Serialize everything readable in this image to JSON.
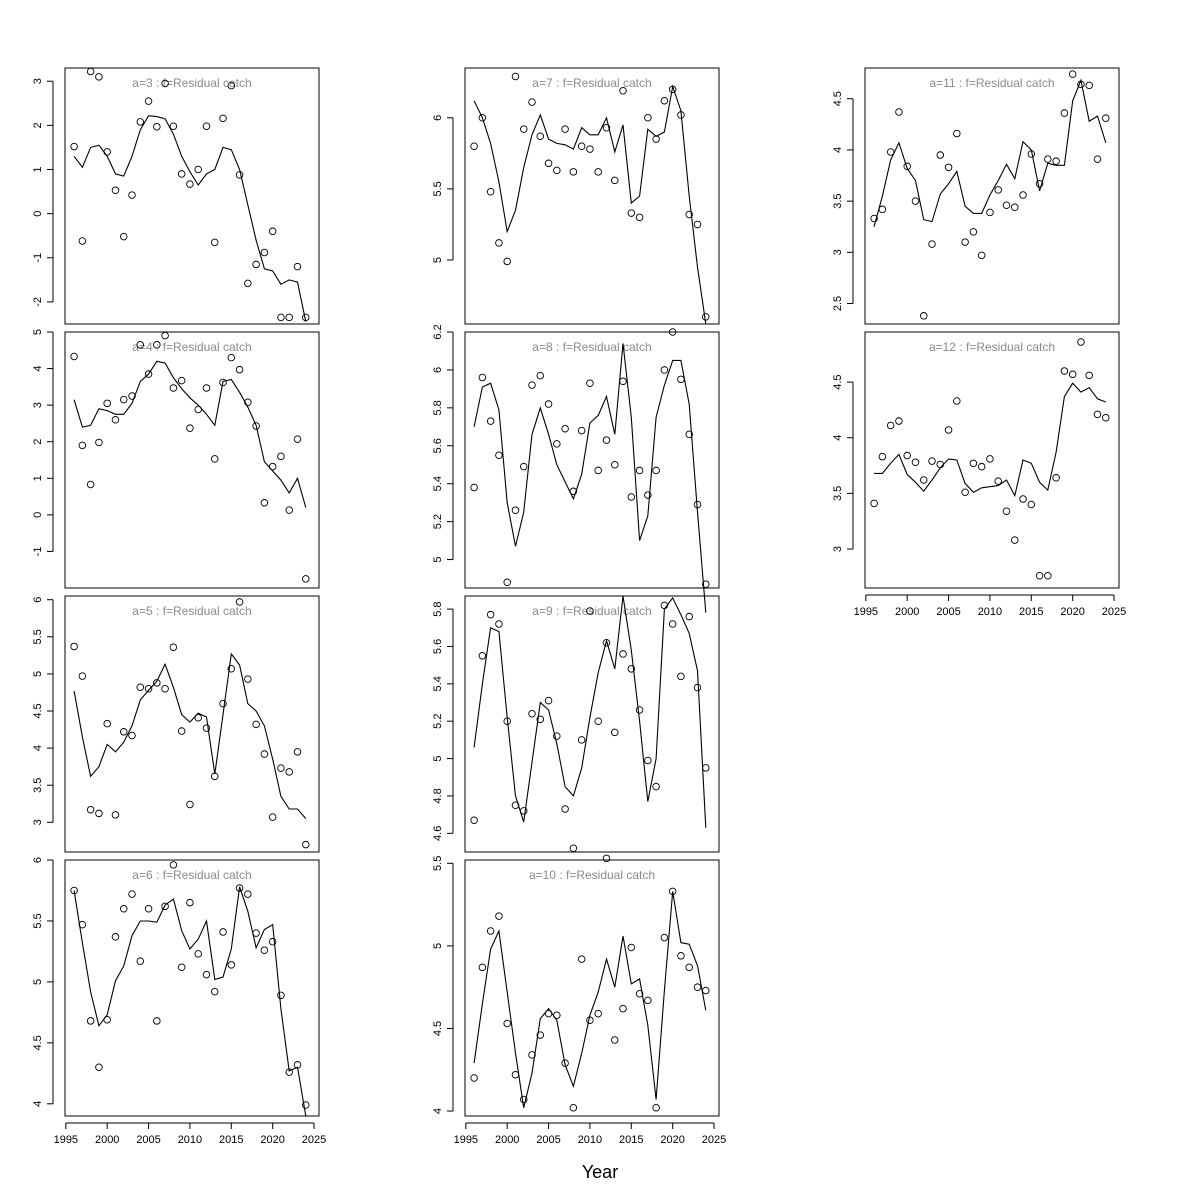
{
  "chart_data": [
    {
      "type": "line",
      "title": "a=3  :  f=Residual catch",
      "x_years": [
        1996,
        1997,
        1998,
        1999,
        2000,
        2001,
        2002,
        2003,
        2004,
        2005,
        2006,
        2007,
        2008,
        2009,
        2010,
        2011,
        2012,
        2013,
        2014,
        2015,
        2016,
        2017,
        2018,
        2019,
        2020,
        2021,
        2022,
        2023,
        2024
      ],
      "ylim": [
        -2.5,
        3.3
      ],
      "yticks": [
        -2,
        -1,
        0,
        1,
        2,
        3
      ],
      "series": [
        {
          "role": "fitted",
          "style": "line",
          "values": [
            1.3,
            1.05,
            1.5,
            1.55,
            1.3,
            0.9,
            0.85,
            1.3,
            1.9,
            2.22,
            2.2,
            2.15,
            1.8,
            1.3,
            0.95,
            0.65,
            0.9,
            1.0,
            1.5,
            1.45,
            1.0,
            0.2,
            -0.6,
            -1.25,
            -1.3,
            -1.6,
            -1.5,
            -1.55,
            -2.45
          ]
        },
        {
          "role": "observed",
          "style": "points",
          "values": [
            1.52,
            -0.62,
            3.22,
            3.1,
            1.4,
            0.53,
            -0.52,
            0.42,
            2.08,
            2.55,
            1.97,
            2.95,
            1.98,
            0.9,
            0.67,
            1.0,
            1.98,
            -0.65,
            2.16,
            2.9,
            0.88,
            -1.58,
            -1.15,
            -0.88,
            -0.4,
            -2.35,
            -2.35,
            -1.2,
            -2.35
          ]
        }
      ]
    },
    {
      "type": "line",
      "title": "a=4  :  f=Residual catch",
      "x_years": [
        1996,
        1997,
        1998,
        1999,
        2000,
        2001,
        2002,
        2003,
        2004,
        2005,
        2006,
        2007,
        2008,
        2009,
        2010,
        2011,
        2012,
        2013,
        2014,
        2015,
        2016,
        2017,
        2018,
        2019,
        2020,
        2021,
        2022,
        2023,
        2024
      ],
      "ylim": [
        -2,
        5
      ],
      "yticks": [
        -1,
        0,
        1,
        2,
        3,
        4,
        5
      ],
      "series": [
        {
          "role": "fitted",
          "style": "line",
          "values": [
            3.15,
            2.4,
            2.45,
            2.9,
            2.85,
            2.75,
            2.75,
            3.05,
            3.65,
            3.85,
            4.2,
            4.15,
            3.75,
            3.45,
            3.2,
            3.0,
            2.75,
            2.45,
            3.65,
            3.7,
            3.35,
            2.95,
            2.45,
            1.45,
            1.2,
            0.95,
            0.6,
            1.0,
            0.2
          ]
        },
        {
          "role": "observed",
          "style": "points",
          "values": [
            4.33,
            1.9,
            0.83,
            1.98,
            3.05,
            2.6,
            3.15,
            3.25,
            4.65,
            3.85,
            4.65,
            4.9,
            3.47,
            3.67,
            2.37,
            2.88,
            3.47,
            1.53,
            3.62,
            4.3,
            3.97,
            3.08,
            2.43,
            0.33,
            1.32,
            1.6,
            0.13,
            2.07,
            -1.75
          ]
        }
      ]
    },
    {
      "type": "line",
      "title": "a=5  :  f=Residual catch",
      "x_years": [
        1996,
        1997,
        1998,
        1999,
        2000,
        2001,
        2002,
        2003,
        2004,
        2005,
        2006,
        2007,
        2008,
        2009,
        2010,
        2011,
        2012,
        2013,
        2014,
        2015,
        2016,
        2017,
        2018,
        2019,
        2020,
        2021,
        2022,
        2023,
        2024
      ],
      "ylim": [
        2.6,
        6.05
      ],
      "yticks": [
        3.0,
        3.5,
        4.0,
        4.5,
        5.0,
        5.5,
        6.0
      ],
      "series": [
        {
          "role": "fitted",
          "style": "line",
          "values": [
            4.77,
            4.15,
            3.62,
            3.75,
            4.05,
            3.95,
            4.08,
            4.3,
            4.65,
            4.78,
            4.9,
            5.13,
            4.82,
            4.45,
            4.35,
            4.47,
            4.42,
            3.65,
            4.45,
            5.27,
            5.12,
            4.6,
            4.5,
            4.3,
            3.85,
            3.35,
            3.18,
            3.18,
            3.05
          ]
        },
        {
          "role": "observed",
          "style": "points",
          "values": [
            5.37,
            4.97,
            3.17,
            3.12,
            4.33,
            3.1,
            4.22,
            4.17,
            4.82,
            4.8,
            4.88,
            4.8,
            5.36,
            4.23,
            3.24,
            4.41,
            4.27,
            3.62,
            4.6,
            5.07,
            5.97,
            4.93,
            4.32,
            3.92,
            3.07,
            3.73,
            3.68,
            3.95,
            2.7
          ]
        }
      ]
    },
    {
      "type": "line",
      "title": "a=6  :  f=Residual catch",
      "x_years": [
        1996,
        1997,
        1998,
        1999,
        2000,
        2001,
        2002,
        2003,
        2004,
        2005,
        2006,
        2007,
        2008,
        2009,
        2010,
        2011,
        2012,
        2013,
        2014,
        2015,
        2016,
        2017,
        2018,
        2019,
        2020,
        2021,
        2022,
        2023,
        2024
      ],
      "ylim": [
        3.9,
        6.0
      ],
      "yticks": [
        4.0,
        4.5,
        5.0,
        5.5,
        6.0
      ],
      "series": [
        {
          "role": "fitted",
          "style": "line",
          "values": [
            5.75,
            5.32,
            4.92,
            4.64,
            4.73,
            5.01,
            5.13,
            5.38,
            5.5,
            5.5,
            5.49,
            5.63,
            5.68,
            5.42,
            5.27,
            5.35,
            5.5,
            5.02,
            5.04,
            5.27,
            5.78,
            5.58,
            5.28,
            5.43,
            5.47,
            4.78,
            4.27,
            4.3,
            3.9
          ]
        },
        {
          "role": "observed",
          "style": "points",
          "values": [
            5.75,
            5.47,
            4.68,
            4.3,
            4.69,
            5.37,
            5.6,
            5.72,
            5.17,
            5.6,
            4.68,
            5.62,
            5.96,
            5.12,
            5.65,
            5.23,
            5.06,
            4.92,
            5.41,
            5.14,
            5.77,
            5.72,
            5.4,
            5.26,
            5.33,
            4.89,
            4.26,
            4.32,
            3.99
          ]
        }
      ]
    },
    {
      "type": "line",
      "title": "a=7  :  f=Residual catch",
      "x_years": [
        1996,
        1997,
        1998,
        1999,
        2000,
        2001,
        2002,
        2003,
        2004,
        2005,
        2006,
        2007,
        2008,
        2009,
        2010,
        2011,
        2012,
        2013,
        2014,
        2015,
        2016,
        2017,
        2018,
        2019,
        2020,
        2021,
        2022,
        2023,
        2024
      ],
      "ylim": [
        4.55,
        6.35
      ],
      "yticks": [
        5.0,
        5.5,
        6.0
      ],
      "series": [
        {
          "role": "fitted",
          "style": "line",
          "values": [
            6.12,
            6.0,
            5.82,
            5.55,
            5.2,
            5.35,
            5.65,
            5.88,
            6.02,
            5.85,
            5.82,
            5.81,
            5.78,
            5.93,
            5.88,
            5.88,
            6.0,
            5.76,
            5.95,
            5.4,
            5.45,
            5.92,
            5.87,
            5.9,
            6.22,
            6.05,
            5.45,
            4.95,
            4.55
          ]
        },
        {
          "role": "observed",
          "style": "points",
          "values": [
            5.8,
            6.0,
            5.48,
            5.12,
            4.99,
            6.29,
            5.92,
            6.11,
            5.87,
            5.68,
            5.63,
            5.92,
            5.62,
            5.8,
            5.78,
            5.62,
            5.93,
            5.56,
            6.19,
            5.33,
            5.3,
            6.0,
            5.85,
            6.12,
            6.2,
            6.02,
            5.32,
            5.25,
            4.6
          ]
        }
      ]
    },
    {
      "type": "line",
      "title": "a=8  :  f=Residual catch",
      "x_years": [
        1996,
        1997,
        1998,
        1999,
        2000,
        2001,
        2002,
        2003,
        2004,
        2005,
        2006,
        2007,
        2008,
        2009,
        2010,
        2011,
        2012,
        2013,
        2014,
        2015,
        2016,
        2017,
        2018,
        2019,
        2020,
        2021,
        2022,
        2023,
        2024
      ],
      "ylim": [
        4.85,
        6.2
      ],
      "yticks": [
        5.0,
        5.2,
        5.4,
        5.6,
        5.8,
        6.0,
        6.2
      ],
      "series": [
        {
          "role": "fitted",
          "style": "line",
          "values": [
            5.7,
            5.91,
            5.93,
            5.79,
            5.3,
            5.07,
            5.25,
            5.66,
            5.8,
            5.66,
            5.5,
            5.41,
            5.32,
            5.45,
            5.72,
            5.76,
            5.86,
            5.66,
            6.14,
            5.75,
            5.1,
            5.23,
            5.75,
            5.92,
            6.05,
            6.05,
            5.82,
            5.25,
            4.72
          ]
        },
        {
          "role": "observed",
          "style": "points",
          "values": [
            5.38,
            5.96,
            5.73,
            5.55,
            4.88,
            5.26,
            5.49,
            5.92,
            5.97,
            5.82,
            5.61,
            5.69,
            5.36,
            5.68,
            5.93,
            5.47,
            5.63,
            5.5,
            5.94,
            5.33,
            5.47,
            5.34,
            5.47,
            6.0,
            6.2,
            5.95,
            5.66,
            5.29,
            4.87
          ]
        }
      ]
    },
    {
      "type": "line",
      "title": "a=9  :  f=Residual catch",
      "x_years": [
        1996,
        1997,
        1998,
        1999,
        2000,
        2001,
        2002,
        2003,
        2004,
        2005,
        2006,
        2007,
        2008,
        2009,
        2010,
        2011,
        2012,
        2013,
        2014,
        2015,
        2016,
        2017,
        2018,
        2019,
        2020,
        2021,
        2022,
        2023,
        2024
      ],
      "ylim": [
        4.5,
        5.87
      ],
      "yticks": [
        4.6,
        4.8,
        5.0,
        5.2,
        5.4,
        5.6,
        5.8
      ],
      "series": [
        {
          "role": "fitted",
          "style": "line",
          "values": [
            5.06,
            5.4,
            5.7,
            5.68,
            5.22,
            4.8,
            4.66,
            4.98,
            5.3,
            5.26,
            5.08,
            4.85,
            4.8,
            4.95,
            5.22,
            5.46,
            5.63,
            5.48,
            5.87,
            5.58,
            5.2,
            4.77,
            5.0,
            5.8,
            5.86,
            5.77,
            5.67,
            5.47,
            4.63
          ]
        },
        {
          "role": "observed",
          "style": "points",
          "values": [
            4.67,
            5.55,
            5.77,
            5.72,
            5.2,
            4.75,
            4.72,
            5.24,
            5.21,
            5.31,
            5.12,
            4.73,
            4.52,
            5.1,
            5.79,
            5.2,
            5.62,
            5.14,
            5.56,
            5.48,
            5.26,
            4.99,
            4.85,
            5.82,
            5.72,
            5.44,
            5.76,
            5.38,
            4.95
          ]
        }
      ]
    },
    {
      "type": "line",
      "title": "a=10  :  f=Residual catch",
      "x_years": [
        1996,
        1997,
        1998,
        1999,
        2000,
        2001,
        2002,
        2003,
        2004,
        2005,
        2006,
        2007,
        2008,
        2009,
        2010,
        2011,
        2012,
        2013,
        2014,
        2015,
        2016,
        2017,
        2018,
        2019,
        2020,
        2021,
        2022,
        2023,
        2024
      ],
      "ylim": [
        3.97,
        5.52
      ],
      "yticks": [
        4.0,
        4.5,
        5.0,
        5.5
      ],
      "series": [
        {
          "role": "fitted",
          "style": "line",
          "values": [
            4.29,
            4.65,
            4.98,
            5.09,
            4.72,
            4.35,
            4.02,
            4.23,
            4.56,
            4.62,
            4.55,
            4.28,
            4.15,
            4.35,
            4.58,
            4.72,
            4.92,
            4.75,
            5.06,
            4.77,
            4.8,
            4.52,
            4.07,
            4.73,
            5.33,
            5.02,
            5.01,
            4.88,
            4.61
          ]
        },
        {
          "role": "observed",
          "style": "points",
          "values": [
            4.2,
            4.87,
            5.09,
            5.18,
            4.53,
            4.22,
            4.07,
            4.34,
            4.46,
            4.59,
            4.58,
            4.29,
            4.02,
            4.92,
            4.55,
            4.59,
            5.53,
            4.43,
            4.62,
            4.99,
            4.71,
            4.67,
            4.02,
            5.05,
            5.33,
            4.94,
            4.87,
            4.75,
            4.73
          ]
        }
      ]
    },
    {
      "type": "line",
      "title": "a=11  :  f=Residual catch",
      "x_years": [
        1996,
        1997,
        1998,
        1999,
        2000,
        2001,
        2002,
        2003,
        2004,
        2005,
        2006,
        2007,
        2008,
        2009,
        2010,
        2011,
        2012,
        2013,
        2014,
        2015,
        2016,
        2017,
        2018,
        2019,
        2020,
        2021,
        2022,
        2023,
        2024
      ],
      "ylim": [
        2.3,
        4.8
      ],
      "yticks": [
        2.5,
        3.0,
        3.5,
        4.0,
        4.5
      ],
      "series": [
        {
          "role": "fitted",
          "style": "line",
          "values": [
            3.25,
            3.55,
            3.9,
            4.07,
            3.82,
            3.7,
            3.32,
            3.3,
            3.57,
            3.67,
            3.79,
            3.45,
            3.38,
            3.38,
            3.56,
            3.7,
            3.86,
            3.72,
            4.08,
            4.0,
            3.6,
            3.87,
            3.85,
            3.85,
            4.48,
            4.68,
            4.28,
            4.33,
            4.07
          ]
        },
        {
          "role": "observed",
          "style": "points",
          "values": [
            3.33,
            3.42,
            3.98,
            4.37,
            3.84,
            3.5,
            2.38,
            3.08,
            3.95,
            3.83,
            4.16,
            3.1,
            3.2,
            2.97,
            3.39,
            3.61,
            3.46,
            3.44,
            3.56,
            3.96,
            3.67,
            3.91,
            3.89,
            4.36,
            4.74,
            4.64,
            4.63,
            3.91,
            4.31
          ]
        }
      ]
    },
    {
      "type": "line",
      "title": "a=12  :  f=Residual catch",
      "x_years": [
        1996,
        1997,
        1998,
        1999,
        2000,
        2001,
        2002,
        2003,
        2004,
        2005,
        2006,
        2007,
        2008,
        2009,
        2010,
        2011,
        2012,
        2013,
        2014,
        2015,
        2016,
        2017,
        2018,
        2019,
        2020,
        2021,
        2022,
        2023,
        2024
      ],
      "ylim": [
        2.65,
        4.95
      ],
      "yticks": [
        3.0,
        3.5,
        4.0,
        4.5
      ],
      "series": [
        {
          "role": "fitted",
          "style": "line",
          "values": [
            3.68,
            3.68,
            3.77,
            3.85,
            3.67,
            3.6,
            3.52,
            3.62,
            3.73,
            3.81,
            3.8,
            3.59,
            3.51,
            3.55,
            3.56,
            3.57,
            3.62,
            3.48,
            3.8,
            3.77,
            3.6,
            3.53,
            3.87,
            4.37,
            4.49,
            4.41,
            4.45,
            4.35,
            4.32
          ]
        },
        {
          "role": "observed",
          "style": "points",
          "values": [
            3.41,
            3.83,
            4.11,
            4.15,
            3.84,
            3.78,
            3.62,
            3.79,
            3.76,
            4.07,
            4.33,
            3.51,
            3.77,
            3.74,
            3.81,
            3.61,
            3.34,
            3.08,
            3.45,
            3.4,
            2.76,
            2.76,
            3.64,
            4.6,
            4.57,
            4.86,
            4.56,
            4.21,
            4.18
          ]
        }
      ]
    }
  ],
  "x_axis": {
    "label": "Year",
    "xlim": [
      1994.9,
      2025.6
    ],
    "ticks": [
      1995,
      2000,
      2005,
      2010,
      2015,
      2020,
      2025
    ]
  }
}
